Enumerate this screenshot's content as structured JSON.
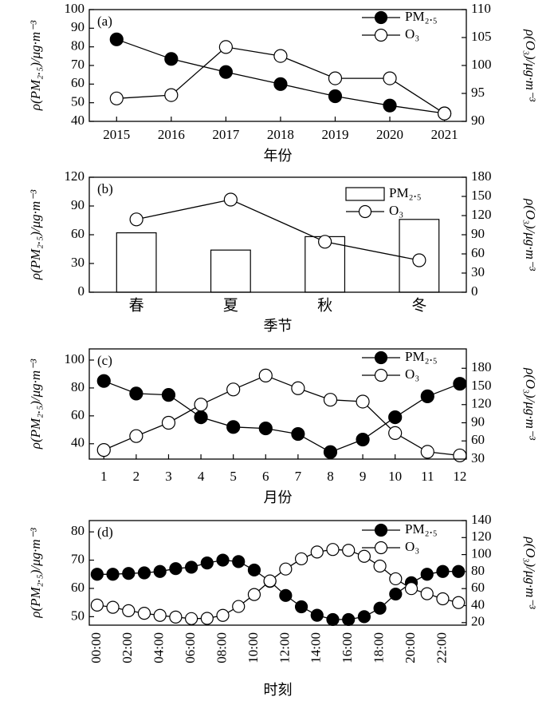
{
  "chart_data": [
    {
      "type": "line",
      "panel_label": "(a)",
      "x_label": "年份",
      "y_label": "ρ(PM₂.₅)/μg·m⁻³",
      "y2_label": "ρ(O₃)/μg·m⁻³",
      "x": [
        2015,
        2016,
        2017,
        2018,
        2019,
        2020,
        2021
      ],
      "xlim": [
        2014.5,
        2021.4
      ],
      "xticks": [
        2015,
        2016,
        2017,
        2018,
        2019,
        2020,
        2021
      ],
      "ylim": [
        40,
        100
      ],
      "yticks": [
        40,
        50,
        60,
        70,
        80,
        90,
        100
      ],
      "y2lim": [
        90,
        110
      ],
      "y2ticks": [
        90,
        95,
        100,
        105,
        110
      ],
      "legend": "upper right",
      "series": [
        {
          "name": "PM₂.₅",
          "color": "#000000",
          "fill": "#000000",
          "values": [
            84,
            73.5,
            66.5,
            60,
            53.5,
            48.5,
            44.3
          ]
        },
        {
          "name": "O₃",
          "color": "#000000",
          "fill": "#ffffff",
          "axis": "y2",
          "values": [
            94.1,
            94.7,
            103.3,
            101.7,
            97.7,
            97.7,
            91.4
          ]
        }
      ]
    },
    {
      "type": "bar",
      "panel_label": "(b)",
      "x_label": "季节",
      "y_label": "ρ(PM₂.₅)/μg·m⁻³",
      "y2_label": "ρ(O₃)/μg·m⁻³",
      "categories": [
        "春",
        "夏",
        "秋",
        "冬"
      ],
      "ylim": [
        0,
        120
      ],
      "yticks": [
        0,
        30,
        60,
        90,
        120
      ],
      "y2lim": [
        0,
        180
      ],
      "y2ticks": [
        0,
        30,
        60,
        90,
        120,
        150,
        180
      ],
      "legend": "upper right",
      "series": [
        {
          "name": "PM₂.₅",
          "type": "bar",
          "color": "#000000",
          "fill": "#ffffff",
          "values": [
            62,
            44,
            58,
            76
          ]
        },
        {
          "name": "O₃",
          "type": "line",
          "color": "#000000",
          "fill": "#ffffff",
          "axis": "y2",
          "values": [
            114,
            145,
            79,
            50
          ]
        }
      ]
    },
    {
      "type": "line",
      "panel_label": "(c)",
      "x_label": "月份",
      "y_label": "ρ(PM₂.₅)/μg·m⁻³",
      "y2_label": "ρ(O₃)/μg·m⁻³",
      "x": [
        1,
        2,
        3,
        4,
        5,
        6,
        7,
        8,
        9,
        10,
        11,
        12
      ],
      "xlim": [
        0.55,
        12.2
      ],
      "xticks": [
        1,
        2,
        3,
        4,
        5,
        6,
        7,
        8,
        9,
        10,
        11,
        12
      ],
      "ylim": [
        29,
        108
      ],
      "yticks": [
        40,
        60,
        80,
        100
      ],
      "y2lim": [
        30,
        212
      ],
      "y2ticks": [
        30,
        60,
        90,
        120,
        150,
        180
      ],
      "legend": "upper right",
      "series": [
        {
          "name": "PM₂.₅",
          "color": "#000000",
          "fill": "#000000",
          "values": [
            85,
            76,
            75,
            59,
            52,
            51,
            47,
            34,
            43,
            59,
            74,
            83
          ]
        },
        {
          "name": "O₃",
          "color": "#000000",
          "fill": "#ffffff",
          "axis": "y2",
          "values": [
            45,
            68,
            90,
            120,
            145,
            168,
            147,
            128,
            125,
            73,
            42,
            36
          ]
        }
      ]
    },
    {
      "type": "line",
      "panel_label": "(d)",
      "x_label": "时刻",
      "y_label": "ρ(PM₂.₅)/μg·m⁻³",
      "y2_label": "ρ(O₃)/μg·m⁻³",
      "categories": [
        "00:00",
        null,
        "02:00",
        null,
        "04:00",
        null,
        "06:00",
        null,
        "08:00",
        null,
        "10:00",
        null,
        "12:00",
        null,
        "14:00",
        null,
        "16:00",
        null,
        "18:00",
        null,
        "20:00",
        null,
        "22:00",
        null
      ],
      "ylim": [
        47,
        84
      ],
      "yticks": [
        50,
        60,
        70,
        80
      ],
      "y2lim": [
        17,
        140
      ],
      "y2ticks": [
        20,
        40,
        60,
        80,
        100,
        120,
        140
      ],
      "legend": "upper right",
      "series": [
        {
          "name": "PM₂.₅",
          "color": "#000000",
          "fill": "#000000",
          "values": [
            65,
            65,
            65.3,
            65.5,
            66,
            67,
            67.5,
            69,
            70,
            69.5,
            66.5,
            62.5,
            57.5,
            53.5,
            50.5,
            49,
            49,
            50,
            53,
            58,
            62,
            65,
            66,
            66
          ]
        },
        {
          "name": "O₃",
          "color": "#000000",
          "fill": "#ffffff",
          "axis": "y2",
          "values": [
            40.6,
            38,
            34,
            31,
            28.5,
            26.5,
            24.7,
            25,
            28.5,
            39,
            53,
            69,
            83,
            95,
            103,
            106,
            105,
            98,
            86.5,
            71.5,
            60,
            54,
            48,
            43.5
          ]
        }
      ]
    }
  ]
}
